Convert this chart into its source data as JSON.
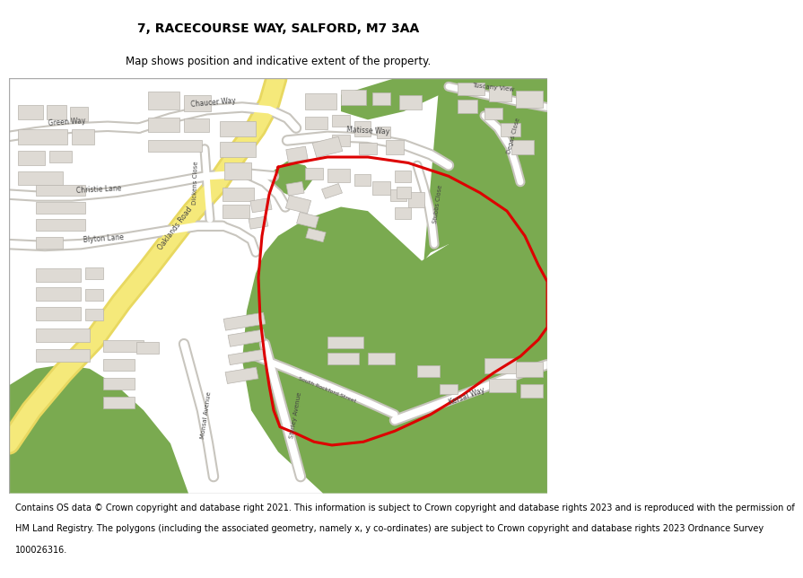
{
  "title": "7, RACECOURSE WAY, SALFORD, M7 3AA",
  "subtitle": "Map shows position and indicative extent of the property.",
  "title_fontsize": 10,
  "subtitle_fontsize": 8.5,
  "footer_fontsize": 7.0,
  "footer_lines": [
    "Contains OS data © Crown copyright and database right 2021. This information is subject to Crown copyright and database rights 2023 and is reproduced with the permission of",
    "HM Land Registry. The polygons (including the associated geometry, namely x, y co-ordinates) are subject to Crown copyright and database rights 2023 Ordnance Survey",
    "100026316."
  ],
  "fig_width": 6.0,
  "fig_height": 6.25,
  "map_facecolor": "#f0ede8",
  "green_color": "#7aaa50",
  "road_yellow": "#f5e97a",
  "road_yellow_edge": "#e8d860",
  "road_white": "#ffffff",
  "road_white_edge": "#c8c5be",
  "building_fill": "#dedad4",
  "building_edge": "#b8b4ae",
  "red_color": "#dd0000",
  "red_lw": 2.2,
  "title_weight": "normal"
}
